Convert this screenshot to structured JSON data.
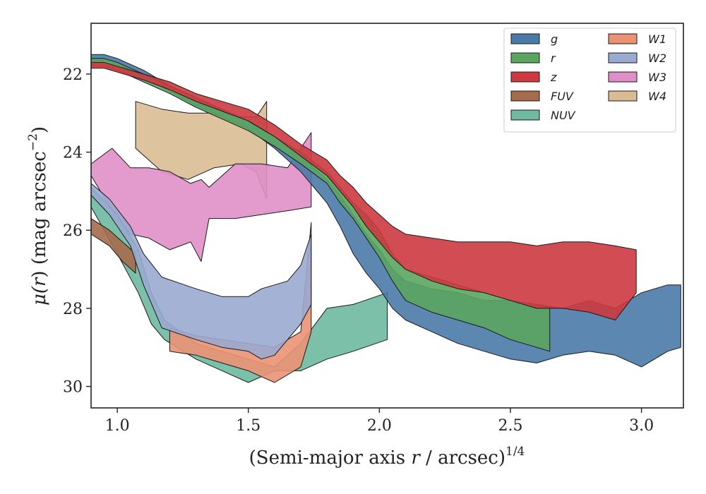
{
  "chart_data": {
    "type": "area",
    "xlabel_parts": [
      "(Semi-major axis ",
      "r",
      " / arcsec)",
      "1/4"
    ],
    "ylabel_parts": [
      "μ(",
      "r",
      ") (mag arcsec",
      "−2",
      ")"
    ],
    "xlim": [
      0.9,
      3.16
    ],
    "ylim": [
      30.55,
      20.7
    ],
    "y_inverted": true,
    "x_ticks": [
      1.0,
      1.5,
      2.0,
      2.5,
      3.0
    ],
    "x_tick_labels": [
      "1.0",
      "1.5",
      "2.0",
      "2.5",
      "3.0"
    ],
    "y_ticks": [
      22,
      24,
      26,
      28,
      30
    ],
    "y_tick_labels": [
      "22",
      "24",
      "26",
      "28",
      "30"
    ],
    "grid": false,
    "legend_position": "top-right",
    "series": [
      {
        "name": "W4",
        "color": "#d9bc94",
        "x": [
          1.07,
          1.17,
          1.27,
          1.37,
          1.47,
          1.53,
          1.57
        ],
        "y_bright": [
          22.7,
          22.9,
          23.0,
          23.0,
          23.1,
          23.1,
          22.7
        ],
        "y_faint": [
          23.9,
          24.5,
          24.7,
          24.4,
          24.3,
          24.5,
          25.2
        ]
      },
      {
        "name": "W3",
        "color": "#e08fc6",
        "x": [
          0.9,
          0.98,
          1.05,
          1.12,
          1.2,
          1.28,
          1.32,
          1.35,
          1.45,
          1.55,
          1.65,
          1.74
        ],
        "y_bright": [
          24.3,
          23.9,
          24.4,
          24.4,
          24.5,
          24.8,
          24.7,
          24.9,
          24.3,
          24.3,
          24.4,
          23.5
        ],
        "y_faint": [
          24.6,
          25.5,
          26.1,
          26.2,
          26.5,
          26.3,
          26.8,
          25.7,
          25.7,
          25.6,
          25.5,
          25.4
        ]
      },
      {
        "name": "NUV",
        "color": "#6eb9a0",
        "x": [
          0.9,
          1.0,
          1.08,
          1.13,
          1.18,
          1.3,
          1.4,
          1.5,
          1.6,
          1.7,
          1.8,
          1.9,
          2.03
        ],
        "y_bright": [
          24.9,
          25.6,
          26.5,
          27.6,
          28.3,
          28.9,
          29.1,
          29.3,
          29.5,
          28.9,
          28.0,
          27.9,
          27.6
        ],
        "y_faint": [
          25.4,
          26.6,
          27.6,
          28.4,
          28.8,
          29.3,
          29.6,
          29.9,
          29.6,
          29.6,
          29.3,
          29.1,
          28.8
        ]
      },
      {
        "name": "FUV",
        "color": "#a56b4c",
        "x": [
          0.9,
          0.97,
          1.02,
          1.07
        ],
        "y_bright": [
          25.7,
          26.0,
          26.3,
          26.6
        ],
        "y_faint": [
          26.1,
          26.4,
          26.8,
          27.1
        ]
      },
      {
        "name": "W1",
        "color": "#eb9274",
        "x": [
          1.2,
          1.3,
          1.4,
          1.5,
          1.6,
          1.7,
          1.74
        ],
        "y_bright": [
          28.5,
          28.7,
          28.8,
          28.9,
          29.0,
          28.6,
          25.8
        ],
        "y_faint": [
          29.1,
          29.2,
          29.4,
          29.6,
          29.9,
          29.5,
          28.6
        ]
      },
      {
        "name": "W2",
        "color": "#9aaad0",
        "x": [
          0.9,
          0.97,
          1.05,
          1.1,
          1.17,
          1.3,
          1.4,
          1.5,
          1.55,
          1.6,
          1.65,
          1.7,
          1.74
        ],
        "y_bright": [
          24.8,
          25.2,
          25.9,
          26.6,
          27.2,
          27.5,
          27.7,
          27.7,
          27.5,
          27.4,
          27.3,
          26.9,
          26.1
        ],
        "y_faint": [
          25.1,
          25.6,
          26.4,
          27.4,
          28.5,
          28.8,
          29.0,
          29.1,
          29.3,
          29.2,
          28.8,
          28.4,
          27.9
        ]
      },
      {
        "name": "g",
        "color": "#4a7aa8",
        "x": [
          0.9,
          0.95,
          1.0,
          1.1,
          1.2,
          1.3,
          1.4,
          1.5,
          1.6,
          1.7,
          1.8,
          1.85,
          1.9,
          1.95,
          2.0,
          2.05,
          2.1,
          2.2,
          2.3,
          2.4,
          2.5,
          2.6,
          2.7,
          2.8,
          2.9,
          3.0,
          3.05,
          3.1,
          3.15
        ],
        "y_bright": [
          21.5,
          21.5,
          21.6,
          21.9,
          22.3,
          22.6,
          22.9,
          23.2,
          23.6,
          24.1,
          24.7,
          25.1,
          25.6,
          26.1,
          26.5,
          27.0,
          27.3,
          27.5,
          27.6,
          27.8,
          27.8,
          27.9,
          28.0,
          27.8,
          28.0,
          27.6,
          27.5,
          27.4,
          27.4
        ],
        "y_faint": [
          21.65,
          21.65,
          21.75,
          22.05,
          22.45,
          22.8,
          23.1,
          23.4,
          23.9,
          24.5,
          25.3,
          25.9,
          26.6,
          27.1,
          27.5,
          28.0,
          28.3,
          28.6,
          28.9,
          29.1,
          29.3,
          29.4,
          29.2,
          29.1,
          29.2,
          29.5,
          29.3,
          29.1,
          29.0
        ]
      },
      {
        "name": "r",
        "color": "#5aa560",
        "x": [
          0.9,
          0.95,
          1.0,
          1.1,
          1.2,
          1.3,
          1.4,
          1.5,
          1.6,
          1.7,
          1.8,
          1.85,
          1.9,
          1.95,
          2.0,
          2.05,
          2.1,
          2.2,
          2.3,
          2.4,
          2.5,
          2.6,
          2.65
        ],
        "y_bright": [
          21.6,
          21.6,
          21.7,
          22.0,
          22.3,
          22.6,
          22.9,
          23.2,
          23.6,
          24.0,
          24.5,
          24.9,
          25.3,
          25.6,
          26.0,
          26.6,
          27.0,
          27.2,
          27.4,
          27.6,
          27.8,
          27.9,
          28.0
        ],
        "y_faint": [
          21.8,
          21.8,
          21.9,
          22.2,
          22.5,
          22.85,
          23.15,
          23.45,
          23.85,
          24.3,
          24.8,
          25.3,
          25.7,
          26.2,
          26.7,
          27.3,
          27.8,
          28.1,
          28.3,
          28.5,
          28.8,
          29.0,
          29.1
        ]
      },
      {
        "name": "z",
        "color": "#cc3a40",
        "x": [
          0.9,
          0.95,
          1.0,
          1.1,
          1.2,
          1.3,
          1.4,
          1.5,
          1.6,
          1.7,
          1.8,
          1.85,
          1.9,
          1.95,
          2.0,
          2.05,
          2.1,
          2.2,
          2.3,
          2.4,
          2.5,
          2.6,
          2.7,
          2.8,
          2.9,
          2.98
        ],
        "y_bright": [
          21.7,
          21.7,
          21.8,
          22.0,
          22.2,
          22.5,
          22.7,
          22.9,
          23.3,
          23.8,
          24.2,
          24.6,
          24.9,
          25.3,
          25.6,
          25.9,
          26.1,
          26.2,
          26.3,
          26.3,
          26.3,
          26.4,
          26.3,
          26.3,
          26.4,
          26.5
        ],
        "y_faint": [
          21.85,
          21.85,
          21.95,
          22.15,
          22.4,
          22.7,
          22.95,
          23.2,
          23.6,
          24.1,
          24.6,
          25.0,
          25.4,
          25.9,
          26.3,
          26.7,
          27.0,
          27.3,
          27.5,
          27.6,
          27.8,
          28.0,
          28.0,
          28.1,
          28.3,
          27.6
        ]
      }
    ]
  },
  "legend": {
    "columns": [
      [
        {
          "label": "g",
          "color": "#4a7aa8"
        },
        {
          "label": "r",
          "color": "#5aa560"
        },
        {
          "label": "z",
          "color": "#cc3a40"
        },
        {
          "label": "FUV",
          "color": "#a56b4c"
        },
        {
          "label": "NUV",
          "color": "#6eb9a0"
        }
      ],
      [
        {
          "label": "W1",
          "color": "#eb9274"
        },
        {
          "label": "W2",
          "color": "#9aaad0"
        },
        {
          "label": "W3",
          "color": "#e08fc6"
        },
        {
          "label": "W4",
          "color": "#d9bc94"
        }
      ]
    ]
  }
}
